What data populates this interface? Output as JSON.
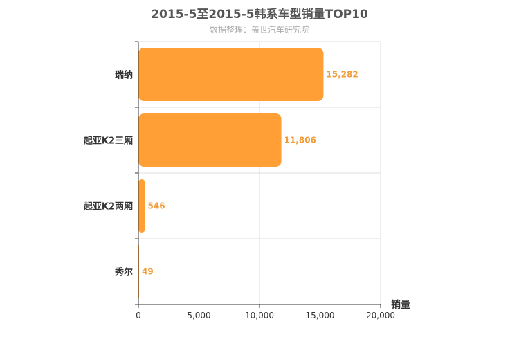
{
  "chart_data": {
    "type": "bar",
    "orientation": "horizontal",
    "title": "2015-5至2015-5韩系车型销量TOP10",
    "subtitle": "数据整理：盖世汽车研究院",
    "categories": [
      "瑞纳",
      "起亚K2三厢",
      "起亚K2两厢",
      "秀尔"
    ],
    "values": [
      15282,
      11806,
      546,
      49
    ],
    "value_labels": [
      "15,282",
      "11,806",
      "546",
      "49"
    ],
    "xlabel": "销量",
    "ylabel": "",
    "xlim": [
      0,
      20000
    ],
    "x_ticks": [
      0,
      5000,
      10000,
      15000,
      20000
    ],
    "x_tick_labels": [
      "0",
      "5,000",
      "10,000",
      "15,000",
      "20,000"
    ],
    "grid": true,
    "bar_color": "#ff9f35"
  }
}
